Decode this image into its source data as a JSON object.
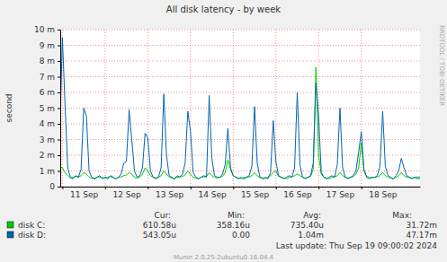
{
  "chart_data": {
    "type": "line",
    "title": "All disk latency - by week",
    "y_label": "second",
    "grid": true,
    "legend": "bottom",
    "xlim": [
      10.95,
      19.375
    ],
    "xticks": [
      {
        "value": 11,
        "label": "11 Sep"
      },
      {
        "value": 12,
        "label": "12 Sep"
      },
      {
        "value": 13,
        "label": "13 Sep"
      },
      {
        "value": 14,
        "label": "14 Sep"
      },
      {
        "value": 15,
        "label": "15 Sep"
      },
      {
        "value": 16,
        "label": "16 Sep"
      },
      {
        "value": 17,
        "label": "17 Sep"
      },
      {
        "value": 18,
        "label": "18 Sep"
      }
    ],
    "ylim": [
      0,
      0.01
    ],
    "yticks": [
      0,
      {
        "value": 0.001,
        "label": "1 m"
      },
      {
        "value": 0.002,
        "label": "2 m"
      },
      {
        "value": 0.003,
        "label": "3 m"
      },
      {
        "value": 0.004,
        "label": "4 m"
      },
      {
        "value": 0.005,
        "label": "5 m"
      },
      {
        "value": 0.006,
        "label": "6 m"
      },
      {
        "value": 0.007,
        "label": "7 m"
      },
      {
        "value": 0.008,
        "label": "8 m"
      },
      {
        "value": 0.009,
        "label": "9 m"
      },
      {
        "value": 0.01,
        "label": "10 m"
      }
    ],
    "legend_columns": [
      "Cur:",
      "Min:",
      "Avg:",
      "Max:"
    ],
    "x": [
      10.9375,
      11,
      11.0625,
      11.125,
      11.1875,
      11.25,
      11.3125,
      11.375,
      11.4375,
      11.5,
      11.5625,
      11.625,
      11.6875,
      11.75,
      11.8125,
      11.875,
      11.9375,
      12,
      12.0625,
      12.125,
      12.1875,
      12.25,
      12.3125,
      12.375,
      12.4375,
      12.5,
      12.5625,
      12.625,
      12.6875,
      12.75,
      12.8125,
      12.875,
      12.9375,
      13,
      13.0625,
      13.125,
      13.1875,
      13.25,
      13.3125,
      13.375,
      13.4375,
      13.5,
      13.5625,
      13.625,
      13.6875,
      13.75,
      13.8125,
      13.875,
      13.9375,
      14,
      14.0625,
      14.125,
      14.1875,
      14.25,
      14.3125,
      14.375,
      14.4375,
      14.5,
      14.5625,
      14.625,
      14.6875,
      14.75,
      14.8125,
      14.875,
      14.9375,
      15,
      15.0625,
      15.125,
      15.1875,
      15.25,
      15.3125,
      15.375,
      15.4375,
      15.5,
      15.5625,
      15.625,
      15.6875,
      15.75,
      15.8125,
      15.875,
      15.9375,
      16,
      16.0625,
      16.125,
      16.1875,
      16.25,
      16.3125,
      16.375,
      16.4375,
      16.5,
      16.5625,
      16.625,
      16.6875,
      16.75,
      16.8125,
      16.875,
      16.9375,
      17,
      17.0625,
      17.125,
      17.1875,
      17.25,
      17.3125,
      17.375,
      17.4375,
      17.5,
      17.5625,
      17.625,
      17.6875,
      17.75,
      17.8125,
      17.875,
      17.9375,
      18,
      18.0625,
      18.125,
      18.1875,
      18.25,
      18.3125,
      18.375,
      18.4375,
      18.5,
      18.5625,
      18.625,
      18.6875,
      18.75,
      18.8125,
      18.875,
      18.9375,
      19,
      19.0625,
      19.125,
      19.1875,
      19.25,
      19.3125,
      19.375
    ],
    "series": [
      {
        "name": "disk C:",
        "color": "#00cc00",
        "stats": [
          {
            "value": 0.00061058,
            "label": "610.58u"
          },
          {
            "value": 0.00035816,
            "label": "358.16u"
          },
          {
            "value": 0.0007354,
            "label": "735.40u"
          },
          {
            "value": 0.03172,
            "label": "31.72m"
          }
        ],
        "values": [
          0.0013,
          0.0012,
          0.0009,
          0.0007,
          0.00055,
          0.0006,
          0.00065,
          0.0006,
          0.0007,
          0.0009,
          0.0008,
          0.0006,
          0.00055,
          0.0005,
          0.0006,
          0.00062,
          0.00057,
          0.00055,
          0.0006,
          0.00065,
          0.00058,
          0.0005,
          0.0006,
          0.00062,
          0.0007,
          0.00075,
          0.0009,
          0.0008,
          0.0006,
          0.00055,
          0.0006,
          0.0008,
          0.0012,
          0.001,
          0.0007,
          0.0006,
          0.00055,
          0.0006,
          0.0007,
          0.001,
          0.0008,
          0.0006,
          0.00055,
          0.0005,
          0.0006,
          0.00062,
          0.00065,
          0.00075,
          0.001,
          0.0008,
          0.0006,
          0.00055,
          0.0005,
          0.0006,
          0.00062,
          0.00065,
          0.0009,
          0.0007,
          0.0006,
          0.00055,
          0.0006,
          0.00065,
          0.0009,
          0.0017,
          0.0011,
          0.0007,
          0.0006,
          0.00055,
          0.0005,
          0.00058,
          0.0006,
          0.00062,
          0.0007,
          0.0009,
          0.0007,
          0.0006,
          0.00055,
          0.0005,
          0.0006,
          0.0007,
          0.0009,
          0.001,
          0.00065,
          0.0006,
          0.00055,
          0.0005,
          0.0006,
          0.00062,
          0.0007,
          0.0008,
          0.0007,
          0.0006,
          0.00055,
          0.0006,
          0.00065,
          0.0011,
          0.0076,
          0.002,
          0.0008,
          0.0006,
          0.00055,
          0.0005,
          0.0006,
          0.00062,
          0.0007,
          0.0009,
          0.0007,
          0.0006,
          0.00055,
          0.0006,
          0.00065,
          0.0008,
          0.0012,
          0.0028,
          0.001,
          0.00065,
          0.0006,
          0.00055,
          0.0006,
          0.00062,
          0.0007,
          0.0009,
          0.0007,
          0.0006,
          0.00055,
          0.0005,
          0.0006,
          0.0007,
          0.0009,
          0.0007,
          0.0006,
          0.00058,
          0.00055,
          0.0006,
          0.00062,
          0.00061
        ]
      },
      {
        "name": "disk D:",
        "color": "#0066b3",
        "stats": [
          {
            "value": 0.00054305,
            "label": "543.05u"
          },
          {
            "value": 0,
            "label": "0.00"
          },
          {
            "value": 0.00104,
            "label": "1.04m"
          },
          {
            "value": 0.04717,
            "label": "47.17m"
          }
        ],
        "values": [
          0.003,
          0.0095,
          0.0052,
          0.0012,
          0.0006,
          0.0005,
          0.0007,
          0.0006,
          0.0011,
          0.005,
          0.0045,
          0.001,
          0.0006,
          0.0005,
          0.0006,
          0.0007,
          0.0005,
          0.0006,
          0.0005,
          0.0007,
          0.0006,
          0.0005,
          0.0006,
          0.0008,
          0.0015,
          0.0016,
          0.0049,
          0.003,
          0.001,
          0.0006,
          0.0007,
          0.0012,
          0.0034,
          0.0031,
          0.001,
          0.0006,
          0.0005,
          0.0006,
          0.0012,
          0.0059,
          0.002,
          0.0007,
          0.0006,
          0.0005,
          0.0007,
          0.0006,
          0.0008,
          0.0015,
          0.0048,
          0.0035,
          0.0009,
          0.0006,
          0.0005,
          0.0006,
          0.0007,
          0.0006,
          0.0058,
          0.0018,
          0.0007,
          0.0006,
          0.0006,
          0.0008,
          0.0014,
          0.0037,
          0.0012,
          0.0007,
          0.0006,
          0.0005,
          0.0006,
          0.0005,
          0.0006,
          0.0007,
          0.0013,
          0.0051,
          0.0015,
          0.0006,
          0.0005,
          0.0006,
          0.0005,
          0.0009,
          0.0042,
          0.0016,
          0.0007,
          0.0006,
          0.0005,
          0.0006,
          0.0007,
          0.0006,
          0.0012,
          0.006,
          0.0014,
          0.0006,
          0.0005,
          0.0006,
          0.0007,
          0.0015,
          0.0066,
          0.0045,
          0.0009,
          0.0006,
          0.0005,
          0.0006,
          0.0007,
          0.0006,
          0.0014,
          0.005,
          0.0012,
          0.0006,
          0.0005,
          0.0006,
          0.0007,
          0.001,
          0.0022,
          0.0035,
          0.0011,
          0.0006,
          0.0005,
          0.0006,
          0.0006,
          0.0007,
          0.0013,
          0.0048,
          0.0013,
          0.0007,
          0.0006,
          0.0005,
          0.0007,
          0.001,
          0.0018,
          0.0012,
          0.0007,
          0.0006,
          0.0005,
          0.0006,
          0.0005,
          0.00054
        ]
      }
    ],
    "last_update": "Last update: Thu Sep 19 09:00:02 2024",
    "version": "Munin 2.0.25-2ubuntu0.16.04.4",
    "watermark": "RRDTOOL / TOBI OETIKER"
  }
}
